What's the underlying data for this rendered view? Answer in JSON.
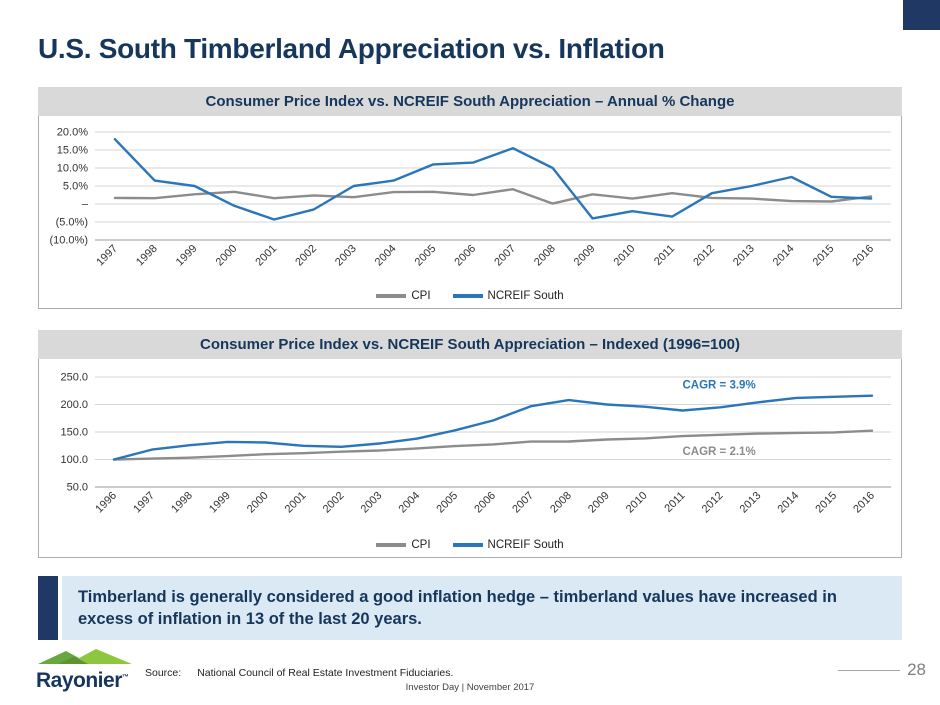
{
  "slide": {
    "title": "U.S. South Timberland Appreciation vs. Inflation",
    "callout": "Timberland is generally considered a good inflation hedge – timberland values have increased in excess of inflation in 13 of the last 20 years.",
    "logo_text": "Rayonier",
    "logo_tm": "™",
    "source_label": "Source:",
    "source_text": "National Council of Real Estate Investment Fiduciaries.",
    "footer_center": "Investor Day  |  November 2017",
    "page_number": "28"
  },
  "colors": {
    "navy": "#1f3864",
    "title_navy": "#16365c",
    "line_blue": "#2a76b9",
    "line_gray": "#8c8c8c",
    "panel_header_bg": "#d9d9d9",
    "callout_bg": "#dbe9f5",
    "logo_green_dark": "#6aa63f",
    "logo_green_light": "#8dc63f"
  },
  "chart_data": [
    {
      "type": "line",
      "title": "Consumer Price Index vs. NCREIF South Appreciation – Annual % Change",
      "categories": [
        "1997",
        "1998",
        "1999",
        "2000",
        "2001",
        "2002",
        "2003",
        "2004",
        "2005",
        "2006",
        "2007",
        "2008",
        "2009",
        "2010",
        "2011",
        "2012",
        "2013",
        "2014",
        "2015",
        "2016"
      ],
      "series": [
        {
          "name": "CPI",
          "color": "#8c8c8c",
          "values": [
            1.7,
            1.6,
            2.7,
            3.4,
            1.6,
            2.4,
            1.9,
            3.3,
            3.4,
            2.5,
            4.1,
            0.1,
            2.7,
            1.5,
            3.0,
            1.7,
            1.5,
            0.8,
            0.7,
            2.1
          ]
        },
        {
          "name": "NCREIF South",
          "color": "#2a76b9",
          "values": [
            18.0,
            6.5,
            5.0,
            -0.5,
            -4.3,
            -1.5,
            5.0,
            6.5,
            11.0,
            11.5,
            15.5,
            10.0,
            -4.0,
            -2.0,
            -3.5,
            3.0,
            5.0,
            7.5,
            2.0,
            1.5
          ]
        }
      ],
      "ylim": [
        -10,
        20
      ],
      "yticks": [
        20,
        15,
        10,
        5,
        0,
        -5,
        -10
      ],
      "ytick_labels": [
        "20.0%",
        "15.0%",
        "10.0%",
        "5.0%",
        "–",
        "(5.0%)",
        "(10.0%)"
      ],
      "grid": true,
      "legend_position": "bottom",
      "annotations": []
    },
    {
      "type": "line",
      "title": "Consumer Price Index vs. NCREIF South Appreciation – Indexed (1996=100)",
      "categories": [
        "1996",
        "1997",
        "1998",
        "1999",
        "2000",
        "2001",
        "2002",
        "2003",
        "2004",
        "2005",
        "2006",
        "2007",
        "2008",
        "2009",
        "2010",
        "2011",
        "2012",
        "2013",
        "2014",
        "2015",
        "2016"
      ],
      "series": [
        {
          "name": "CPI",
          "color": "#8c8c8c",
          "values": [
            100,
            101.7,
            103.3,
            106.1,
            109.7,
            111.5,
            114.2,
            116.3,
            120.2,
            124.3,
            127.4,
            132.6,
            132.7,
            136.3,
            138.4,
            142.5,
            144.9,
            147.1,
            148.3,
            149.3,
            152.4
          ]
        },
        {
          "name": "NCREIF South",
          "color": "#2a76b9",
          "values": [
            100,
            118,
            126,
            132,
            131,
            125,
            123,
            129,
            138,
            153,
            171,
            197,
            208,
            200,
            196,
            189,
            195,
            204,
            212,
            214,
            216
          ]
        }
      ],
      "ylim": [
        50,
        250
      ],
      "yticks": [
        250,
        200,
        150,
        100,
        50
      ],
      "ytick_labels": [
        "250.0",
        "200.0",
        "150.0",
        "100.0",
        "50.0"
      ],
      "grid": true,
      "legend_position": "bottom",
      "annotations": [
        {
          "text": "CAGR = 3.9%",
          "color": "#2a76b9",
          "at_category": "2011",
          "at_value": 229
        },
        {
          "text": "CAGR = 2.1%",
          "color": "#8c8c8c",
          "at_category": "2011",
          "at_value": 108
        }
      ]
    }
  ]
}
